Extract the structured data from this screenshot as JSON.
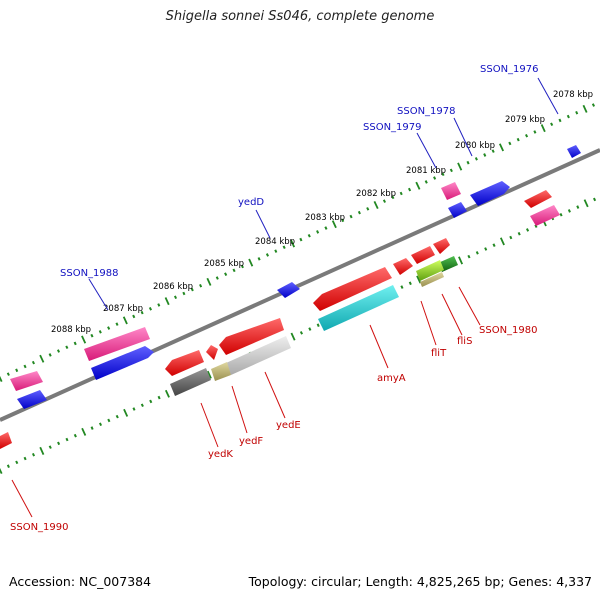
{
  "title": "Shigella sonnei Ss046, complete genome",
  "footer": {
    "accession": "Accession: NC_007384",
    "topology": "Topology: circular; Length: 4,825,265 bp; Genes: 4,337"
  },
  "kbp_labels": [
    "2078 kbp",
    "2079 kbp",
    "2080 kbp",
    "2081 kbp",
    "2082 kbp",
    "2083 kbp",
    "2084 kbp",
    "2085 kbp",
    "2086 kbp",
    "2087 kbp",
    "2088 kbp"
  ],
  "gene_labels_top": [
    "SSON_1976",
    "SSON_1978",
    "SSON_1979",
    "yedD",
    "SSON_1988"
  ],
  "gene_labels_bottom": [
    "SSON_1980",
    "fliS",
    "fliT",
    "amyA",
    "yedE",
    "yedF",
    "yedK",
    "SSON_1990"
  ],
  "colors": {
    "backbone": "#808080",
    "tick": "#228822",
    "forward_blue": "#1a1adf",
    "pink": "#e8338c",
    "red": "#e81212",
    "cyan": "#1ab8c0",
    "darkgray": "#666666",
    "lightgray": "#c8c8c8",
    "olive": "#b8b070",
    "lime": "#8ed020",
    "green": "#228c22"
  }
}
